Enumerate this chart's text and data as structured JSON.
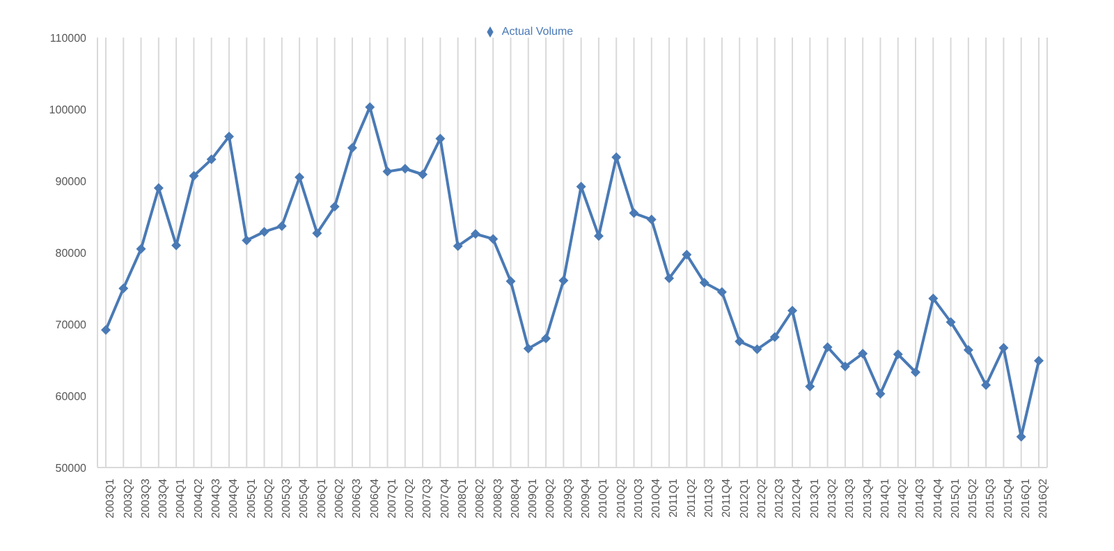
{
  "chart_data": {
    "type": "line",
    "categories": [
      "2003Q1",
      "2003Q2",
      "2003Q3",
      "2003Q4",
      "2004Q1",
      "2004Q2",
      "2004Q3",
      "2004Q4",
      "2005Q1",
      "2005Q2",
      "2005Q3",
      "2005Q4",
      "2006Q1",
      "2006Q2",
      "2006Q3",
      "2006Q4",
      "2007Q1",
      "2007Q2",
      "2007Q3",
      "2007Q4",
      "2008Q1",
      "2008Q2",
      "2008Q3",
      "2008Q4",
      "2009Q1",
      "2009Q2",
      "2009Q3",
      "2009Q4",
      "2010Q1",
      "2010Q2",
      "2010Q3",
      "2010Q4",
      "2011Q1",
      "2011Q2",
      "2011Q3",
      "2011Q4",
      "2012Q1",
      "2012Q2",
      "2012Q3",
      "2012Q4",
      "2013Q1",
      "2013Q2",
      "2013Q3",
      "2013Q4",
      "2014Q1",
      "2014Q2",
      "2014Q3",
      "2014Q4",
      "2015Q1",
      "2015Q2",
      "2015Q3",
      "2015Q4",
      "2016Q1",
      "2016Q2"
    ],
    "series": [
      {
        "name": "Actual Volume",
        "color": "#4a7ab5",
        "values": [
          69200,
          75000,
          80500,
          89000,
          81000,
          90700,
          93000,
          96200,
          81700,
          82900,
          83700,
          90500,
          82700,
          86400,
          94600,
          100300,
          91300,
          91700,
          90900,
          95900,
          80900,
          82600,
          81900,
          76000,
          66600,
          68000,
          76100,
          89200,
          82300,
          93300,
          85500,
          84600,
          76400,
          79700,
          75800,
          74500,
          67600,
          66500,
          68200,
          71900,
          61300,
          66800,
          64100,
          65900,
          60300,
          65800,
          63300,
          73600,
          70300,
          66400,
          61500,
          66700,
          54300,
          64900
        ]
      }
    ],
    "ylim": [
      50000,
      110000
    ],
    "yticks": [
      50000,
      60000,
      70000,
      80000,
      90000,
      100000,
      110000
    ],
    "grid": "x",
    "legend": "top",
    "marker": "diamond",
    "line_style": "solid"
  }
}
